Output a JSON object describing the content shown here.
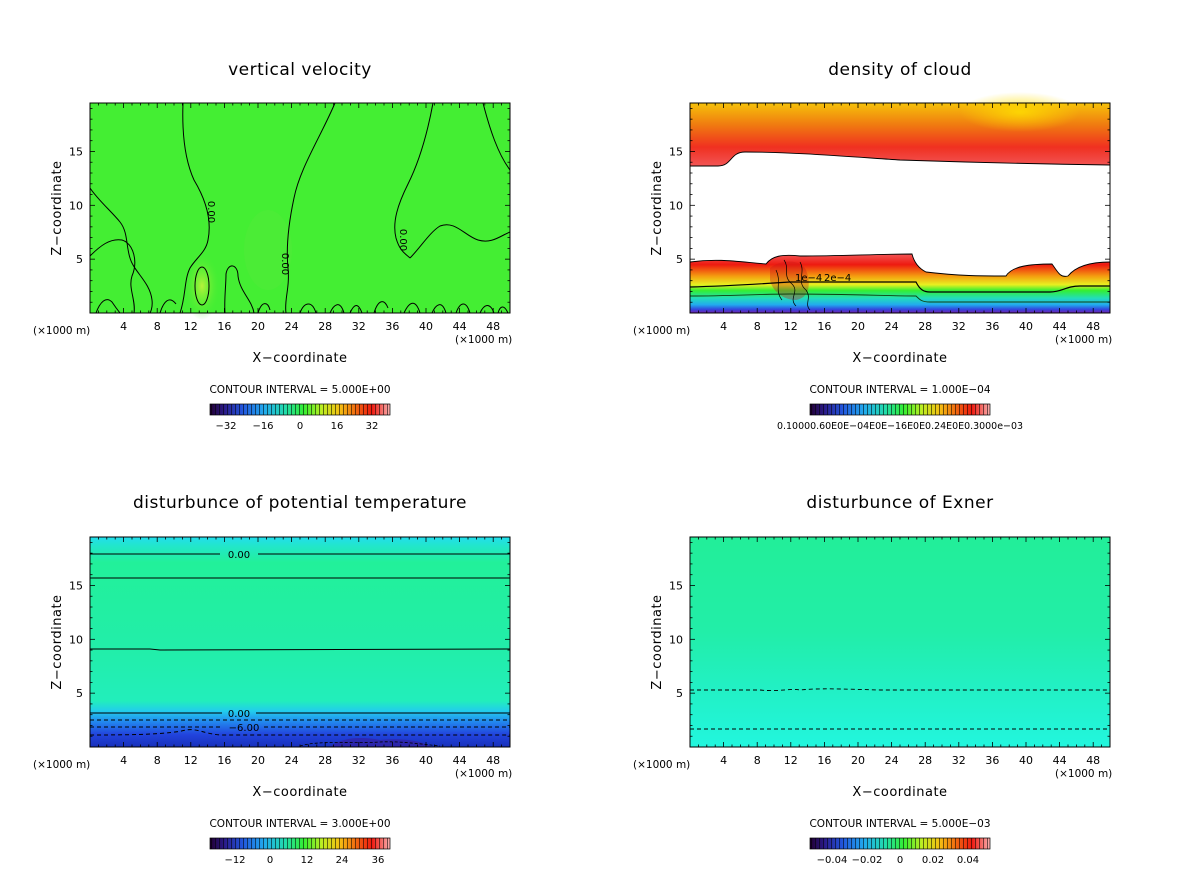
{
  "chart_data": [
    {
      "type": "heatmap",
      "title": "vertical velocity",
      "xlabel": "X−coordinate",
      "ylabel": "Z−coordinate",
      "x_unit": "(×1000 m)",
      "y_unit": "(×1000 m)",
      "xlim": [
        0,
        50
      ],
      "ylim": [
        0,
        19.5
      ],
      "x_ticks": [
        "4",
        "8",
        "12",
        "16",
        "20",
        "24",
        "28",
        "32",
        "36",
        "40",
        "44",
        "48"
      ],
      "y_ticks": [
        "5",
        "10",
        "15"
      ],
      "contour_interval": "CONTOUR INTERVAL = 5.000E+00",
      "colorbar_ticks": [
        "−32",
        "−16",
        "0",
        "16",
        "32"
      ],
      "contour_labels": [
        "0.00",
        "0.00",
        "0.00"
      ],
      "background_color": "#44ee33",
      "grid": false
    },
    {
      "type": "heatmap",
      "title": "density of cloud",
      "xlabel": "X−coordinate",
      "ylabel": "Z−coordinate",
      "x_unit": "(×1000 m)",
      "y_unit": "(×1000 m)",
      "xlim": [
        0,
        50
      ],
      "ylim": [
        0,
        19.5
      ],
      "x_ticks": [
        "4",
        "8",
        "12",
        "16",
        "20",
        "24",
        "28",
        "32",
        "36",
        "40",
        "44",
        "48"
      ],
      "y_ticks": [
        "5",
        "10",
        "15"
      ],
      "contour_interval": "CONTOUR INTERVAL = 1.000E−04",
      "colorbar_ticks_text": "0.10000.60E0E−04E0E−16E0E0.24E0E0.3000e−03",
      "contour_labels": [
        "1e−4",
        "2e−4"
      ],
      "grid": false
    },
    {
      "type": "heatmap",
      "title": "disturbunce of potential temperature",
      "xlabel": "X−coordinate",
      "ylabel": "Z−coordinate",
      "x_unit": "(×1000 m)",
      "y_unit": "(×1000 m)",
      "xlim": [
        0,
        50
      ],
      "ylim": [
        0,
        19.5
      ],
      "x_ticks": [
        "4",
        "8",
        "12",
        "16",
        "20",
        "24",
        "28",
        "32",
        "36",
        "40",
        "44",
        "48"
      ],
      "y_ticks": [
        "5",
        "10",
        "15"
      ],
      "contour_interval": "CONTOUR INTERVAL = 3.000E+00",
      "colorbar_ticks": [
        "−12",
        "0",
        "12",
        "24",
        "36"
      ],
      "contour_labels": [
        "0.00",
        "0.00",
        "−6.00"
      ],
      "grid": false
    },
    {
      "type": "heatmap",
      "title": "disturbunce of Exner",
      "xlabel": "X−coordinate",
      "ylabel": "Z−coordinate",
      "x_unit": "(×1000 m)",
      "y_unit": "(×1000 m)",
      "xlim": [
        0,
        50
      ],
      "ylim": [
        0,
        19.5
      ],
      "x_ticks": [
        "4",
        "8",
        "12",
        "16",
        "20",
        "24",
        "28",
        "32",
        "36",
        "40",
        "44",
        "48"
      ],
      "y_ticks": [
        "5",
        "10",
        "15"
      ],
      "contour_interval": "CONTOUR INTERVAL = 5.000E−03",
      "colorbar_ticks": [
        "−0.04",
        "−0.02",
        "0",
        "0.02",
        "0.04"
      ],
      "grid": false
    }
  ]
}
